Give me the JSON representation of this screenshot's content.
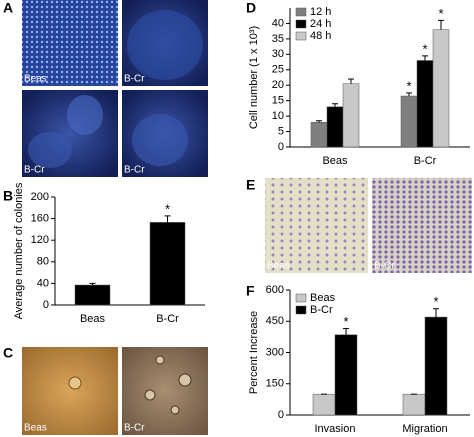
{
  "panels": {
    "A": {
      "label": "A",
      "images": [
        "Beas",
        "B-Cr",
        "B-Cr",
        "B-Cr"
      ]
    },
    "B": {
      "label": "B"
    },
    "C": {
      "label": "C",
      "images": [
        "Beas",
        "B-Cr"
      ]
    },
    "D": {
      "label": "D"
    },
    "E": {
      "label": "E",
      "images": [
        "Beas",
        "B-Cr"
      ]
    },
    "F": {
      "label": "F"
    }
  },
  "chart_data": [
    {
      "type": "bar",
      "ylabel": "Average number of colonies",
      "categories": [
        "Beas",
        "B-Cr"
      ],
      "values": [
        37,
        153
      ],
      "errors": [
        3,
        12
      ],
      "color": "#000000",
      "significant": [
        false,
        true
      ],
      "significance_label": "*",
      "ylim": [
        0,
        200
      ],
      "yticks": [
        0,
        40,
        80,
        120,
        160,
        200
      ]
    },
    {
      "type": "bar",
      "ylabel": "Cell number (1 x 10³)",
      "categories": [
        "Beas",
        "B-Cr"
      ],
      "series": [
        {
          "name": "12 h",
          "color": "#7f7f7f",
          "values": [
            8,
            16.5
          ],
          "errors": [
            0.5,
            1
          ],
          "significant": [
            false,
            true
          ]
        },
        {
          "name": "24 h",
          "color": "#000000",
          "values": [
            13,
            28
          ],
          "errors": [
            1,
            1.5
          ],
          "significant": [
            false,
            true
          ]
        },
        {
          "name": "48 h",
          "color": "#c8c8c8",
          "values": [
            20.5,
            38
          ],
          "errors": [
            1.5,
            3
          ],
          "significant": [
            false,
            true
          ]
        }
      ],
      "significance_label": "*",
      "ylim": [
        0,
        45
      ],
      "yticks": [
        0,
        5,
        10,
        15,
        20,
        25,
        30,
        35,
        40
      ]
    },
    {
      "type": "bar",
      "ylabel": "Percent Increase",
      "categories": [
        "Invasion",
        "Migration"
      ],
      "series": [
        {
          "name": "Beas",
          "color": "#c8c8c8",
          "values": [
            100,
            100
          ],
          "errors": [
            0,
            0
          ],
          "significant": [
            false,
            false
          ]
        },
        {
          "name": "B-Cr",
          "color": "#000000",
          "values": [
            385,
            470
          ],
          "errors": [
            30,
            40
          ],
          "significant": [
            true,
            true
          ]
        }
      ],
      "significance_label": "*",
      "ylim": [
        0,
        600
      ],
      "yticks": [
        0,
        150,
        300,
        450,
        600
      ]
    }
  ]
}
